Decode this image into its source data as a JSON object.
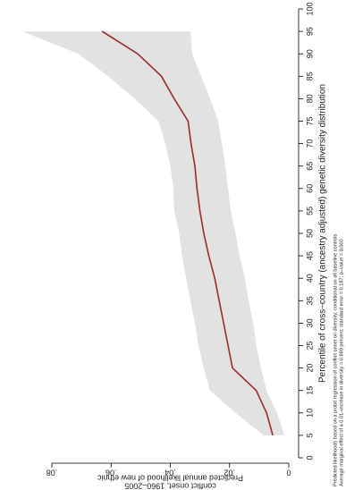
{
  "chart_data": {
    "type": "line",
    "xlabel": "Percentile of cross–country (ancestry adjusted) genetic diversity distribution",
    "ylabel": [
      "Predicted annual likelihood of new ethnic",
      "conflict onset, 1960–2005"
    ],
    "notes": [
      "Predicted likelihoods based on a probit regression of conflict onset on diversity; conditional on all baseline controls",
      "Average marginal effect of a 0.01–increase in diversity = 0.669 percent; standard error = 0.187; p–value = 0.000"
    ],
    "x": [
      5,
      10,
      15,
      20,
      25,
      30,
      35,
      40,
      45,
      50,
      55,
      60,
      65,
      70,
      75,
      80,
      85,
      90,
      95
    ],
    "line": {
      "color": "#9b2b2b",
      "values": [
        0.0054,
        0.0075,
        0.011,
        0.019,
        0.0205,
        0.022,
        0.0235,
        0.025,
        0.027,
        0.0287,
        0.03,
        0.031,
        0.0317,
        0.033,
        0.034,
        0.0387,
        0.043,
        0.051,
        0.063
      ]
    },
    "band": {
      "color": "#e2e2e2",
      "upper": [
        0.0085,
        0.018,
        0.0266,
        0.0287,
        0.0305,
        0.0317,
        0.0332,
        0.0347,
        0.036,
        0.037,
        0.0387,
        0.039,
        0.04,
        0.0417,
        0.044,
        0.052,
        0.061,
        0.071,
        0.09
      ],
      "lower": [
        0.0015,
        0.004,
        0.0075,
        0.0094,
        0.011,
        0.012,
        0.0136,
        0.0148,
        0.0166,
        0.018,
        0.0196,
        0.0205,
        0.0214,
        0.0226,
        0.0238,
        0.0266,
        0.0296,
        0.0326,
        0.0332
      ]
    },
    "xlim": [
      0,
      100
    ],
    "xticks": [
      0,
      5,
      10,
      15,
      20,
      25,
      30,
      35,
      40,
      45,
      50,
      55,
      60,
      65,
      70,
      75,
      80,
      85,
      90,
      95,
      100
    ],
    "ylim": [
      0,
      0.08
    ],
    "yticks": [
      0,
      {
        "value": 0.02,
        "label": ".02"
      },
      {
        "value": 0.04,
        "label": ".04"
      },
      {
        "value": 0.06,
        "label": ".06"
      },
      {
        "value": 0.08,
        "label": ".08"
      }
    ],
    "grid": false
  }
}
